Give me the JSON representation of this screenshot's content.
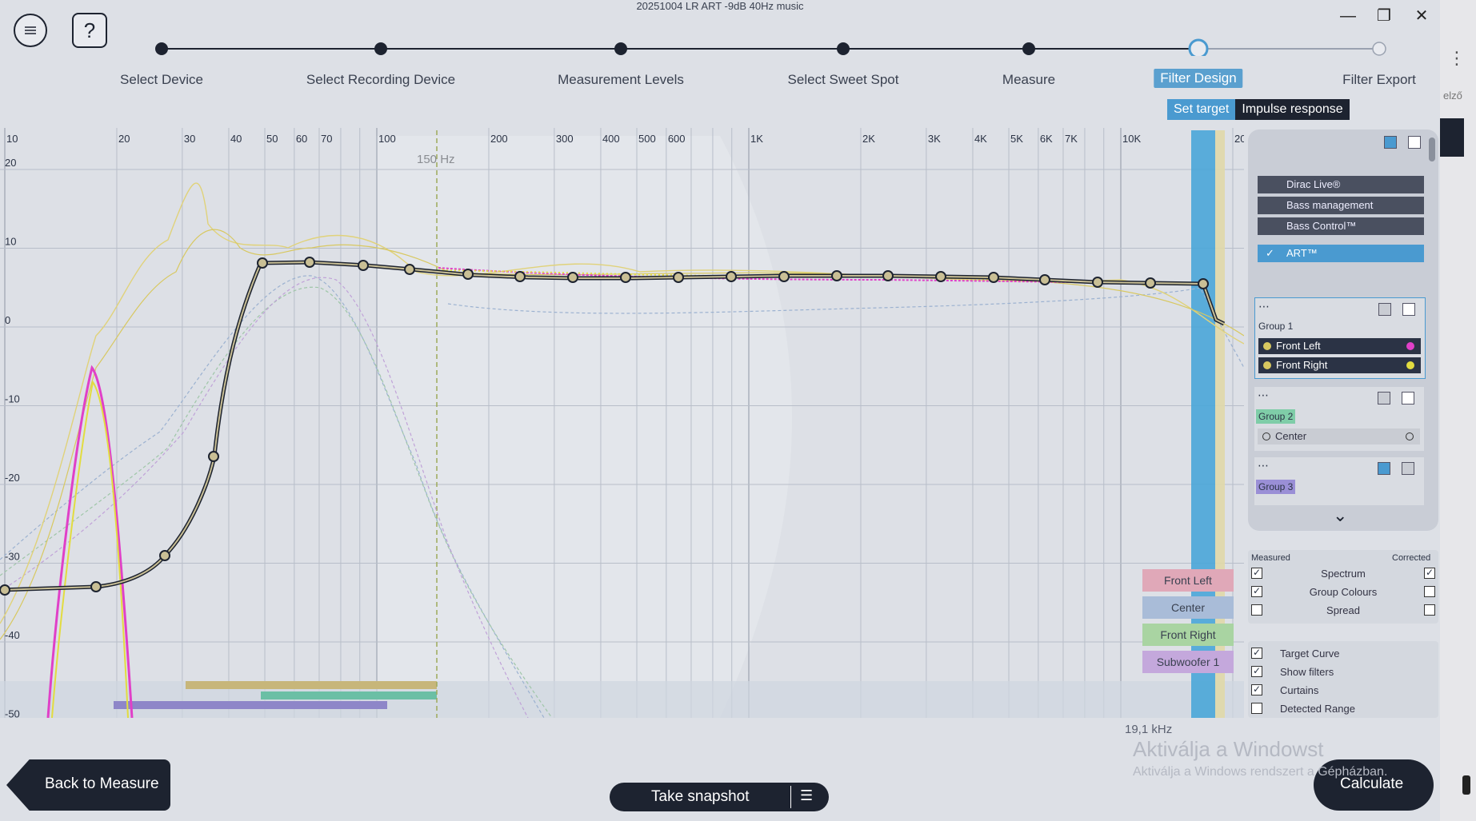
{
  "window": {
    "title": "20251004 LR ART -9dB 40Hz music",
    "minimize_icon": "minimize-icon",
    "maximize_icon": "restore-icon",
    "close_icon": "close-icon"
  },
  "steps": [
    {
      "label": "Select Device"
    },
    {
      "label": "Select Recording Device"
    },
    {
      "label": "Measurement Levels"
    },
    {
      "label": "Select Sweet Spot"
    },
    {
      "label": "Measure"
    },
    {
      "label": "Filter Design"
    },
    {
      "label": "Filter Export"
    }
  ],
  "subtabs": {
    "set_target": "Set target",
    "impulse": "Impulse response"
  },
  "plot": {
    "x_ticks": [
      "10",
      "20",
      "30",
      "40",
      "50",
      "60",
      "70",
      "100",
      "200",
      "300",
      "400",
      "500",
      "600",
      "1K",
      "2K",
      "3K",
      "4K",
      "5K",
      "6K",
      "7K",
      "10K",
      "20"
    ],
    "y_ticks": [
      "20",
      "10",
      "0",
      "-10",
      "-20",
      "-30",
      "-40",
      "-50"
    ],
    "marker_label": "150 Hz",
    "cutoff_label": "19,1 kHz"
  },
  "plugins": [
    "Dirac Live®",
    "Bass management",
    "Bass Control™",
    "ART™"
  ],
  "groups": {
    "g1": {
      "name": "Group 1",
      "items": [
        "Front Left",
        "Front Right"
      ]
    },
    "g2": {
      "name": "Group 2",
      "items": [
        "Center"
      ]
    },
    "g3": {
      "name": "Group 3"
    }
  },
  "legend": [
    "Front Left",
    "Center",
    "Front Right",
    "Subwoofer 1"
  ],
  "options": {
    "measured": "Measured",
    "corrected": "Corrected",
    "rows": [
      {
        "label": "Spectrum",
        "m": true,
        "c": true
      },
      {
        "label": "Group Colours",
        "m": true,
        "c": false
      },
      {
        "label": "Spread",
        "m": false,
        "c": false
      }
    ],
    "toggles": [
      {
        "label": "Target Curve",
        "v": true
      },
      {
        "label": "Show filters",
        "v": true
      },
      {
        "label": "Curtains",
        "v": true
      },
      {
        "label": "Detected Range",
        "v": false
      }
    ]
  },
  "buttons": {
    "back": "Back to Measure",
    "snapshot": "Take snapshot",
    "calculate": "Calculate"
  },
  "watermark": {
    "line1": "Aktiválja a Windowst",
    "line2": "Aktiválja a Windows rendszert a Gépházban."
  },
  "side": {
    "text": "elző"
  },
  "colors": {
    "accent": "#4a9ad0",
    "dark": "#1d2330",
    "front_left": "#e040c8",
    "front_right": "#d8d040"
  }
}
